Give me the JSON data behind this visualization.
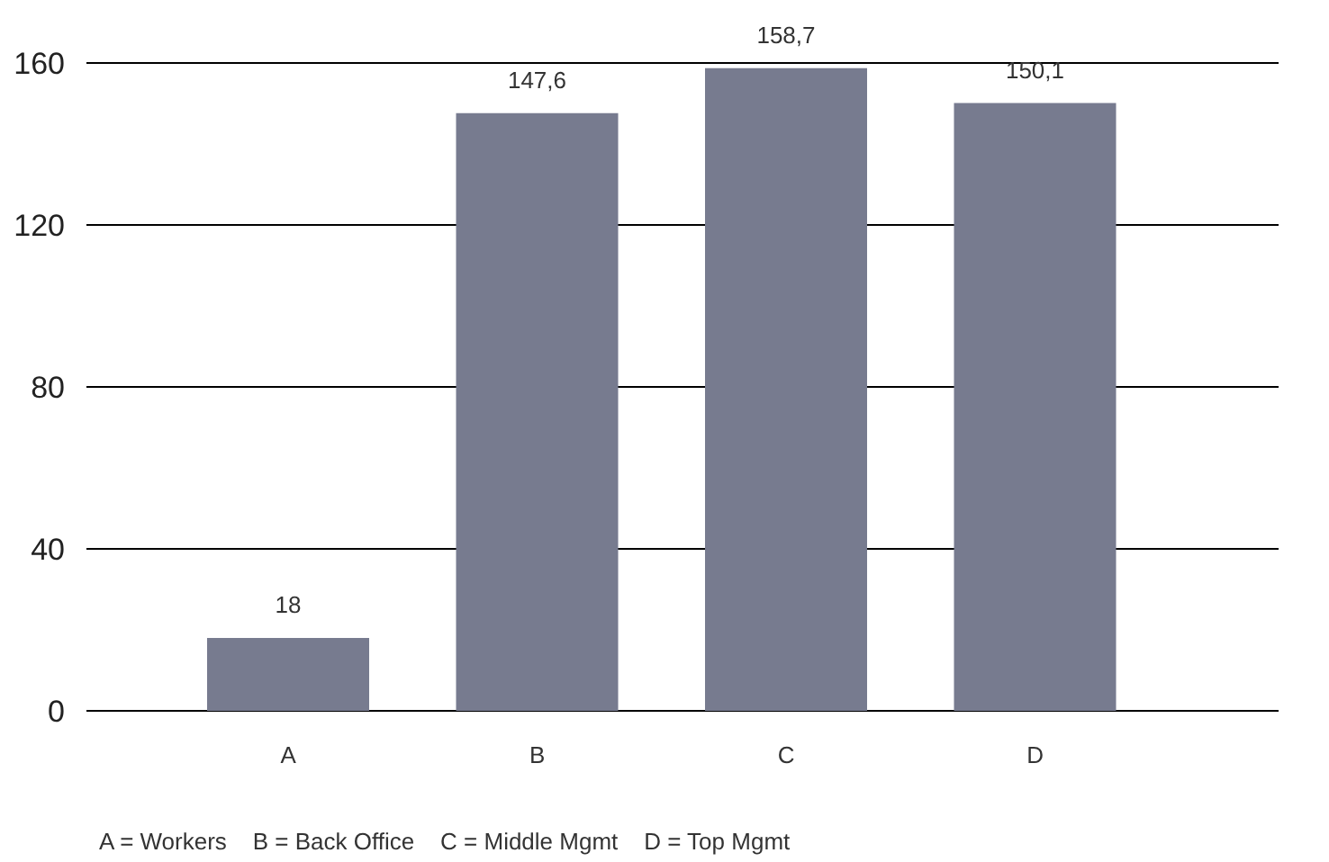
{
  "chart_data": {
    "type": "bar",
    "categories": [
      "A",
      "B",
      "C",
      "D"
    ],
    "values": [
      18,
      147.6,
      158.7,
      150.1
    ],
    "value_labels": [
      "18",
      "147,6",
      "158,7",
      "150,1"
    ],
    "color": "#777b8f",
    "ylim": [
      0,
      160
    ],
    "yticks": [
      0,
      40,
      80,
      120,
      160
    ],
    "grid": "y",
    "annotations": [
      "A = Workers    B = Back Office    C = Middle Mgmt    D = Top Mgmt"
    ]
  }
}
